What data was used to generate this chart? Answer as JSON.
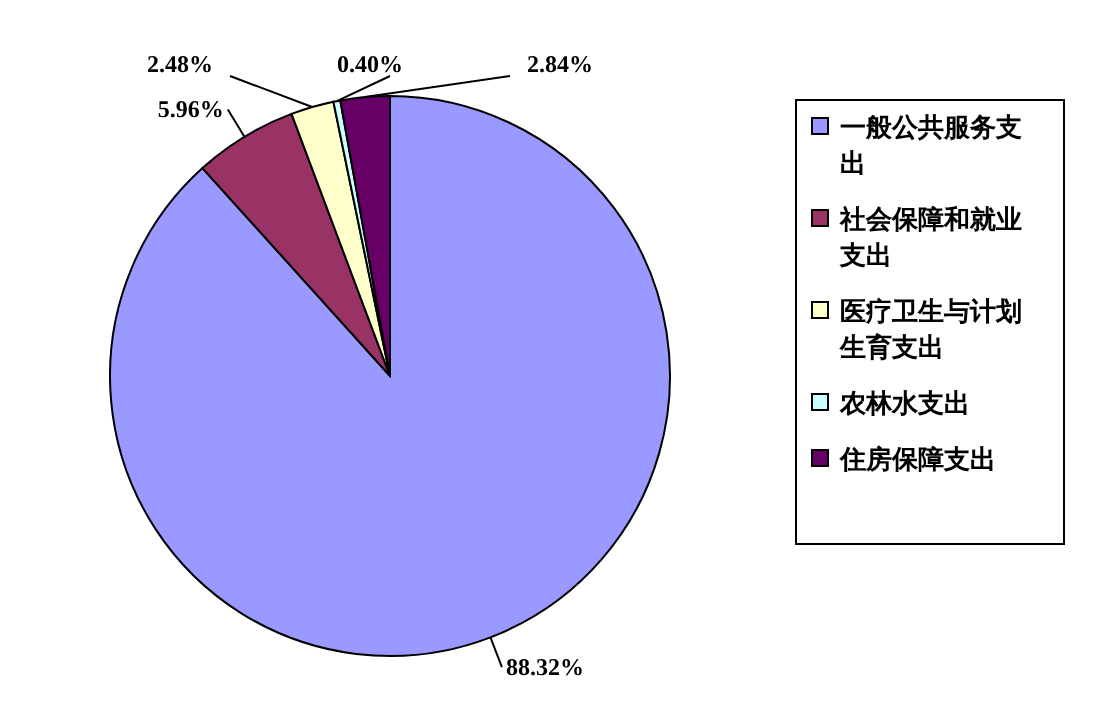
{
  "chart_data": {
    "type": "pie",
    "categories": [
      "一般公共服务支出",
      "社会保障和就业支出",
      "医疗卫生与计划生育支出",
      "农林水支出",
      "住房保障支出"
    ],
    "values": [
      88.32,
      5.96,
      2.48,
      0.4,
      2.84
    ],
    "colors": [
      "#9999ff",
      "#993366",
      "#ffffcc",
      "#ccffff",
      "#660066"
    ],
    "value_labels": [
      "88.32%",
      "5.96%",
      "2.48%",
      "0.40%",
      "2.84%"
    ],
    "legend": "right"
  }
}
